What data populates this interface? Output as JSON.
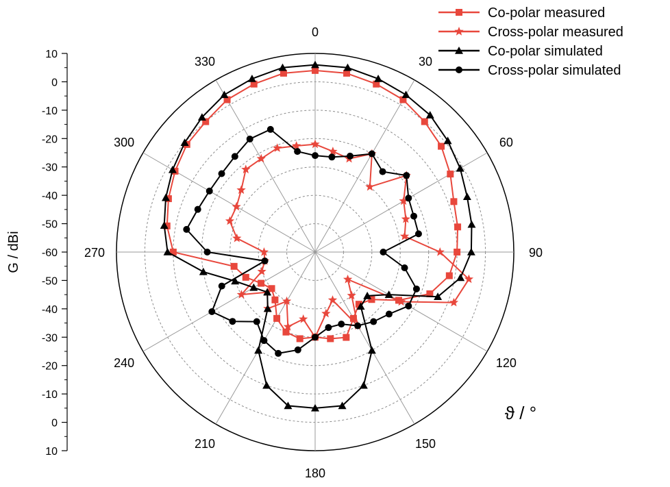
{
  "chart_data": {
    "type": "polar_line",
    "title": "",
    "ylabel": "G / dBi",
    "xlabel": "ϑ / °",
    "angle_ticks": [
      "0",
      "30",
      "60",
      "90",
      "120",
      "150",
      "180",
      "210",
      "240",
      "270",
      "300",
      "330"
    ],
    "angle_tick_values": [
      0,
      30,
      60,
      90,
      120,
      150,
      180,
      210,
      240,
      270,
      300,
      330
    ],
    "radial_range": [
      -60,
      10
    ],
    "radial_ticks": [
      "-60",
      "-50",
      "-40",
      "-30",
      "-20",
      "-10",
      "0",
      "10"
    ],
    "radial_tick_values": [
      -60,
      -50,
      -40,
      -30,
      -20,
      -10,
      0,
      10
    ],
    "grid": true,
    "legend_position": "top-right",
    "colors": {
      "measured": "#e8473c",
      "simulated": "#000000"
    },
    "series": [
      {
        "name": "Co-polar measured",
        "color": "#e8473c",
        "marker": "square",
        "theta": [
          0,
          10,
          20,
          30,
          40,
          50,
          60,
          70,
          80,
          90,
          100,
          110,
          120,
          130,
          140,
          150,
          160,
          170,
          180,
          190,
          200,
          210,
          220,
          230,
          240,
          250,
          260,
          270,
          280,
          290,
          300,
          310,
          320,
          330,
          340,
          350
        ],
        "r": [
          4,
          4,
          3,
          2,
          0,
          -2,
          -5,
          -8,
          -9,
          -10,
          -12,
          -17,
          -26,
          -34,
          -36,
          -33,
          -28,
          -29,
          -30,
          -29,
          -30,
          -33,
          -38,
          -40,
          -38,
          -34,
          -31,
          -10,
          -7,
          -5,
          -3,
          -1,
          0,
          2,
          3,
          4
        ]
      },
      {
        "name": "Cross-polar measured",
        "color": "#e8473c",
        "marker": "star",
        "theta": [
          0,
          10,
          20,
          30,
          40,
          50,
          60,
          70,
          80,
          90,
          100,
          110,
          120,
          130,
          140,
          150,
          160,
          170,
          180,
          190,
          200,
          210,
          220,
          230,
          240,
          250,
          260,
          270,
          280,
          290,
          300,
          310,
          320,
          330,
          340,
          350
        ],
        "r": [
          -22,
          -24,
          -25,
          -20,
          -30,
          -18,
          -24,
          -26,
          -28,
          -16,
          -5,
          -8,
          -25,
          -45,
          -40,
          -30,
          -42,
          -38,
          -30,
          -36,
          -32,
          -40,
          -34,
          -38,
          -30,
          -40,
          -42,
          -42,
          -32,
          -28,
          -28,
          -26,
          -22,
          -22,
          -21,
          -22
        ]
      },
      {
        "name": "Co-polar simulated",
        "color": "#000000",
        "marker": "triangle",
        "theta": [
          0,
          10,
          20,
          30,
          40,
          50,
          60,
          70,
          80,
          90,
          100,
          110,
          120,
          130,
          140,
          150,
          160,
          170,
          180,
          190,
          200,
          210,
          220,
          230,
          240,
          250,
          260,
          270,
          280,
          290,
          300,
          310,
          320,
          330,
          340,
          350
        ],
        "r": [
          6,
          6,
          5,
          4,
          3,
          1,
          -1,
          -3,
          -4,
          -5,
          -8,
          -14,
          -30,
          -36,
          -35,
          -20,
          -10,
          -5,
          -5,
          -5,
          -10,
          -20,
          -34,
          -38,
          -35,
          -30,
          -20,
          -8,
          -6,
          -4,
          -2,
          0,
          2,
          4,
          5,
          6
        ]
      },
      {
        "name": "Cross-polar simulated",
        "color": "#000000",
        "marker": "circle",
        "theta": [
          0,
          10,
          20,
          30,
          40,
          50,
          60,
          70,
          80,
          90,
          100,
          110,
          120,
          130,
          140,
          150,
          160,
          170,
          180,
          190,
          200,
          210,
          220,
          230,
          240,
          250,
          260,
          270,
          280,
          290,
          300,
          310,
          320,
          330,
          340,
          350
        ],
        "r": [
          -26,
          -26,
          -24,
          -20,
          -23,
          -18,
          -22,
          -23,
          -23,
          -36,
          -28,
          -22,
          -22,
          -26,
          -28,
          -30,
          -33,
          -33,
          -30,
          -25,
          -22,
          -24,
          -28,
          -22,
          -18,
          -25,
          -42,
          -22,
          -14,
          -16,
          -17,
          -17,
          -16,
          -14,
          -14,
          -24
        ]
      }
    ]
  }
}
